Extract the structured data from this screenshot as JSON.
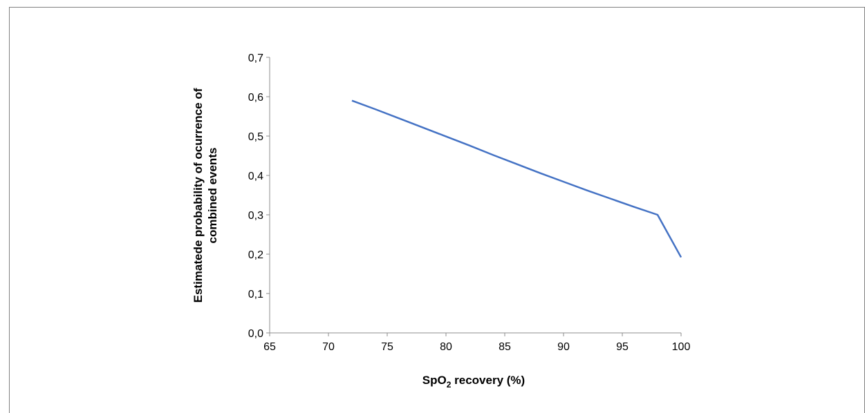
{
  "chart_data": {
    "type": "line",
    "title": "",
    "xlabel": {
      "prefix": "SpO",
      "subscript": "2",
      "suffix": " recovery (%)"
    },
    "ylabel_lines": [
      "Estimatede probability of ocurrence of",
      "combined events"
    ],
    "xlim": [
      65,
      100
    ],
    "ylim": [
      0,
      0.7
    ],
    "x_ticks": [
      65,
      70,
      75,
      80,
      85,
      90,
      95,
      100
    ],
    "y_ticks": [
      0.0,
      0.1,
      0.2,
      0.3,
      0.4,
      0.5,
      0.6,
      0.7
    ],
    "x_tick_labels": [
      "65",
      "70",
      "75",
      "80",
      "85",
      "90",
      "95",
      "100"
    ],
    "y_tick_labels": [
      "0,0",
      "0,1",
      "0,2",
      "0,3",
      "0,4",
      "0,5",
      "0,6",
      "0,7"
    ],
    "grid": false,
    "series": [
      {
        "color": "#4472C4",
        "x": [
          72,
          74,
          76,
          78,
          80,
          82,
          84,
          86,
          88,
          90,
          92,
          94,
          96,
          98,
          100
        ],
        "y": [
          0.59,
          0.568,
          0.545,
          0.522,
          0.499,
          0.476,
          0.452,
          0.429,
          0.406,
          0.384,
          0.362,
          0.341,
          0.32,
          0.3,
          0.192
        ]
      }
    ]
  }
}
